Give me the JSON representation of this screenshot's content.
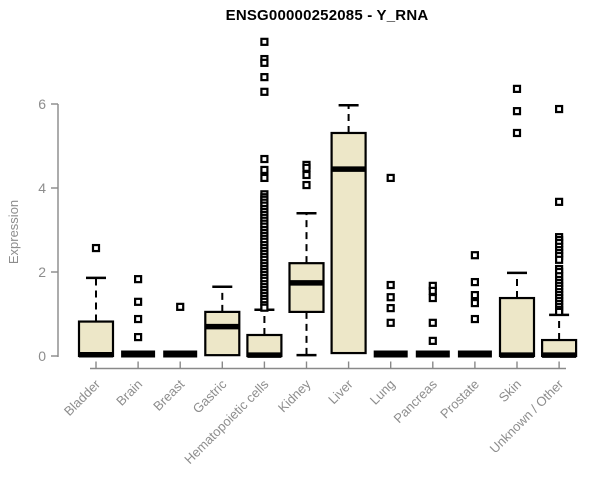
{
  "title": "ENSG00000252085 - Y_RNA",
  "colors": {
    "box_fill": "#ede7c8",
    "box_border": "#000000",
    "median": "#000000",
    "axis": "#898989",
    "tick_label": "#8d8d8d",
    "title_text": "#000000",
    "outlier_fill": "#ffffff"
  },
  "chart_data": {
    "type": "boxplot",
    "title": "ENSG00000252085 - Y_RNA",
    "xlabel": "",
    "ylabel": "Expression",
    "ylim": [
      0,
      6
    ],
    "yticks": [
      0,
      2,
      4,
      6
    ],
    "grid": false,
    "legend": "none",
    "categories": [
      "Bladder",
      "Brain",
      "Breast",
      "Gastric",
      "Hematopoietic cells",
      "Kidney",
      "Liver",
      "Lung",
      "Pancreas",
      "Prostate",
      "Skin",
      "Unknown / Other"
    ],
    "series": [
      {
        "name": "Bladder",
        "collapsed": false,
        "q1": 0,
        "median": 0.03,
        "q3": 0.82,
        "whisker_low": 0,
        "whisker_high": 1.86,
        "outliers": [
          2.57
        ]
      },
      {
        "name": "Brain",
        "collapsed": true,
        "q1": 0,
        "median": 0,
        "q3": 0,
        "whisker_low": 0,
        "whisker_high": 0,
        "outliers": [
          1.83,
          1.29,
          0.88,
          0.45
        ]
      },
      {
        "name": "Breast",
        "collapsed": true,
        "q1": 0,
        "median": 0,
        "q3": 0,
        "whisker_low": 0,
        "whisker_high": 0,
        "outliers": [
          1.17
        ]
      },
      {
        "name": "Gastric",
        "collapsed": false,
        "q1": 0.02,
        "median": 0.7,
        "q3": 1.05,
        "whisker_low": 0.02,
        "whisker_high": 1.65,
        "outliers": []
      },
      {
        "name": "Hematopoietic cells",
        "collapsed": false,
        "q1": 0,
        "median": 0.02,
        "q3": 0.5,
        "whisker_low": 0,
        "whisker_high": 1.1,
        "outliers": [
          7.48,
          7.07,
          6.98,
          6.64,
          6.29,
          4.69,
          4.43,
          4.24,
          3.85,
          3.78,
          3.72,
          3.65,
          3.58,
          3.5,
          3.43,
          3.36,
          3.29,
          3.22,
          3.15,
          3.08,
          3.0,
          2.93,
          2.86,
          2.79,
          2.72,
          2.64,
          2.57,
          2.5,
          2.43,
          2.36,
          2.29,
          2.21,
          2.14,
          2.07,
          2.0,
          1.93,
          1.86,
          1.79,
          1.71,
          1.64,
          1.57,
          1.5,
          1.43,
          1.36,
          1.29,
          1.21,
          1.15
        ]
      },
      {
        "name": "Kidney",
        "collapsed": false,
        "q1": 1.05,
        "median": 1.74,
        "q3": 2.21,
        "whisker_low": 0.02,
        "whisker_high": 3.4,
        "outliers": [
          4.55,
          4.48,
          4.31,
          4.07
        ]
      },
      {
        "name": "Liver",
        "collapsed": false,
        "q1": 0.07,
        "median": 4.45,
        "q3": 5.31,
        "whisker_low": 0.07,
        "whisker_high": 5.97,
        "outliers": []
      },
      {
        "name": "Lung",
        "collapsed": true,
        "q1": 0,
        "median": 0,
        "q3": 0,
        "whisker_low": 0,
        "whisker_high": 0,
        "outliers": [
          4.24,
          1.69,
          1.4,
          1.14,
          0.79
        ]
      },
      {
        "name": "Pancreas",
        "collapsed": true,
        "q1": 0,
        "median": 0,
        "q3": 0,
        "whisker_low": 0,
        "whisker_high": 0,
        "outliers": [
          1.67,
          1.55,
          1.38,
          0.79,
          0.36
        ]
      },
      {
        "name": "Prostate",
        "collapsed": true,
        "q1": 0,
        "median": 0,
        "q3": 0,
        "whisker_low": 0,
        "whisker_high": 0,
        "outliers": [
          2.4,
          1.76,
          1.45,
          1.26,
          0.88
        ]
      },
      {
        "name": "Skin",
        "collapsed": false,
        "q1": 0,
        "median": 0.02,
        "q3": 1.38,
        "whisker_low": 0,
        "whisker_high": 1.98,
        "outliers": [
          6.36,
          5.83,
          5.31
        ]
      },
      {
        "name": "Unknown / Other",
        "collapsed": false,
        "q1": 0,
        "median": 0.02,
        "q3": 0.38,
        "whisker_low": 0,
        "whisker_high": 0.98,
        "outliers": [
          5.88,
          3.67,
          2.83,
          2.76,
          2.69,
          2.6,
          2.52,
          2.45,
          2.38,
          2.29,
          2.07,
          2.0,
          1.9,
          1.81,
          1.74,
          1.67,
          1.6,
          1.52,
          1.45,
          1.38,
          1.31,
          1.24,
          1.17,
          1.1,
          1.05
        ]
      }
    ]
  }
}
